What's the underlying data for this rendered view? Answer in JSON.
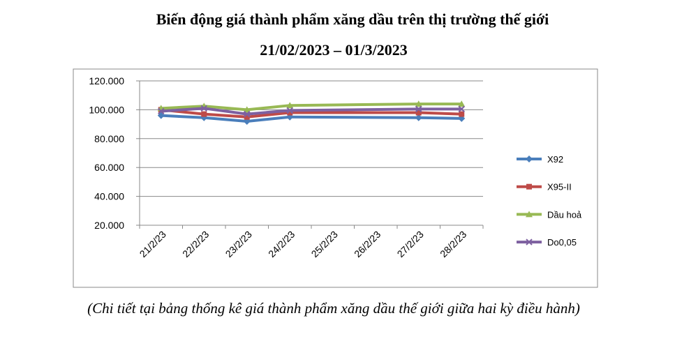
{
  "chart_data": {
    "type": "line",
    "title": "Biến động giá thành phẩm xăng dầu trên thị trường thế giới",
    "subtitle": "21/02/2023 – 01/3/2023",
    "caption": "(Chi tiết tại bảng thống kê giá thành phẩm xăng dầu thế giới giữa hai kỳ điều hành)",
    "categories": [
      "21/2/23",
      "22/2/23",
      "23/2/23",
      "24/2/23",
      "25/2/23",
      "26/2/23",
      "27/2/23",
      "28/2/23"
    ],
    "series": [
      {
        "name": "X92",
        "color": "#4a7ebb",
        "marker": "diamond",
        "values": [
          96,
          94.5,
          92,
          95,
          null,
          null,
          94.5,
          94
        ]
      },
      {
        "name": "X95-II",
        "color": "#be4b48",
        "marker": "square",
        "values": [
          100,
          97,
          95,
          98,
          null,
          null,
          98,
          97
        ]
      },
      {
        "name": "Dầu hoả",
        "color": "#98b954",
        "marker": "triangle",
        "values": [
          101,
          102.5,
          100,
          103,
          null,
          null,
          104,
          104
        ]
      },
      {
        "name": "Do0,05",
        "color": "#7d60a0",
        "marker": "x",
        "values": [
          99,
          101,
          97,
          99.5,
          null,
          null,
          100.5,
          100.5
        ]
      }
    ],
    "ylim": [
      20,
      120
    ],
    "yticks": [
      {
        "value": 20,
        "label": "20.000"
      },
      {
        "value": 40,
        "label": "40.000"
      },
      {
        "value": 60,
        "label": "60.000"
      },
      {
        "value": 80,
        "label": "80.000"
      },
      {
        "value": 100,
        "label": "100.000"
      },
      {
        "value": 120,
        "label": "120.000"
      }
    ],
    "grid": true,
    "connect_gaps": true,
    "legend": "right"
  }
}
